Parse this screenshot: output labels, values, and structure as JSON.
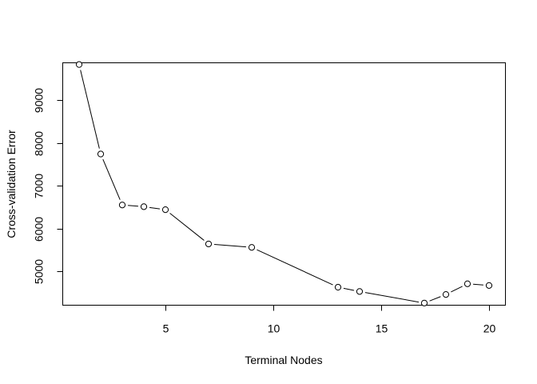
{
  "chart_data": {
    "type": "line",
    "title": "",
    "xlabel": "Terminal Nodes",
    "ylabel": "Cross-validation Error",
    "xlim": [
      0.24,
      20.76
    ],
    "ylim": [
      4210,
      9870
    ],
    "xticks": [
      5,
      10,
      15,
      20
    ],
    "yticks": [
      5000,
      6000,
      7000,
      8000,
      9000
    ],
    "grid": false,
    "legend": "none",
    "series": [
      {
        "x": [
          1,
          2,
          3,
          4,
          5,
          7,
          9,
          13,
          14,
          17,
          18,
          19,
          20
        ],
        "y": [
          9830,
          7740,
          6550,
          6510,
          6440,
          5640,
          5560,
          4630,
          4530,
          4260,
          4460,
          4710,
          4670
        ]
      }
    ]
  }
}
